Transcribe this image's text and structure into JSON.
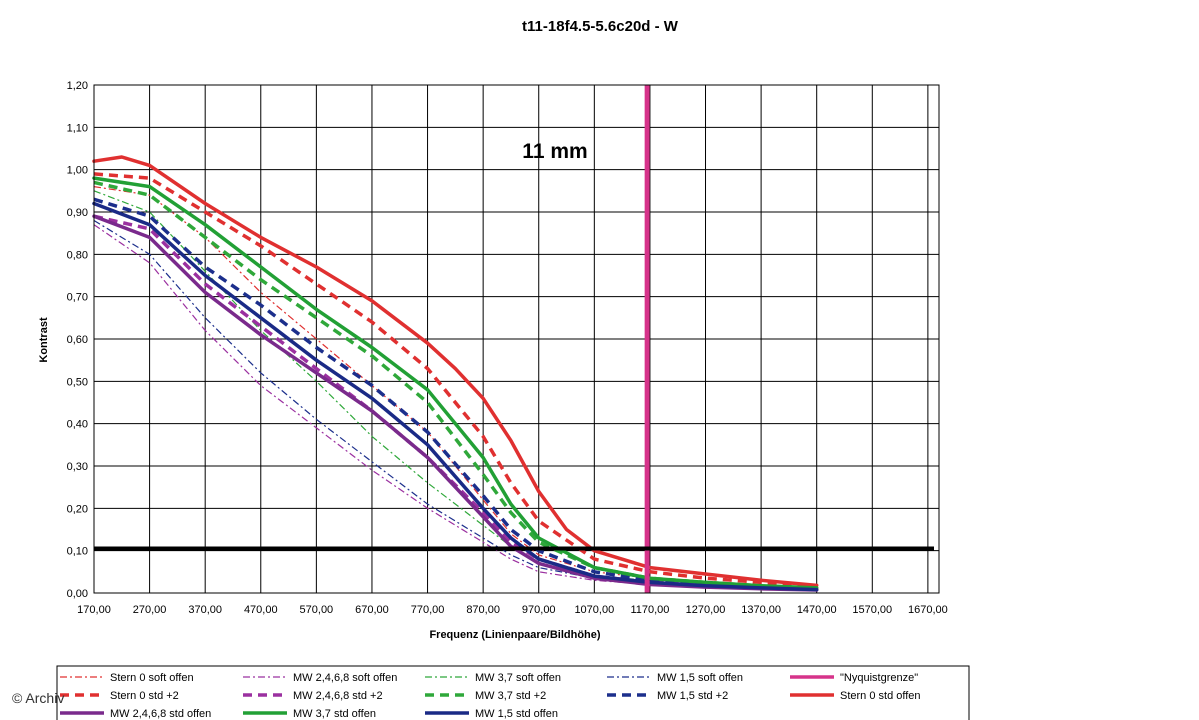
{
  "chart_data": {
    "type": "line",
    "title": "t11-18f4.5-5.6c20d - W",
    "xlabel": "Frequenz (Linienpaare/Bildhöhe)",
    "ylabel": "Kontrast",
    "annotation": "11 mm",
    "xlim": [
      170,
      1690
    ],
    "ylim": [
      0,
      1.2
    ],
    "x_ticks": [
      "170,00",
      "270,00",
      "370,00",
      "470,00",
      "570,00",
      "670,00",
      "770,00",
      "870,00",
      "970,00",
      "1070,00",
      "1170,00",
      "1270,00",
      "1370,00",
      "1470,00",
      "1570,00",
      "1670,00"
    ],
    "y_ticks": [
      "0,00",
      "0,10",
      "0,20",
      "0,30",
      "0,40",
      "0,50",
      "0,60",
      "0,70",
      "0,80",
      "0,90",
      "1,00",
      "1,10",
      "1,20"
    ],
    "grid": true,
    "reference_lines": [
      {
        "axis": "x",
        "value": 1165,
        "color": "#d6338a",
        "series_ref": "\"Nyquistgrenze\""
      },
      {
        "axis": "y",
        "value": 0.105,
        "color": "#000000"
      }
    ],
    "series": [
      {
        "name": "Stern 0 soft offen",
        "color": "#e03030",
        "style": "dashdot",
        "x": [
          170,
          270,
          370,
          470,
          570,
          670,
          770,
          870,
          920,
          970,
          1070,
          1170,
          1270,
          1370,
          1470
        ],
        "y": [
          0.96,
          0.94,
          0.84,
          0.71,
          0.6,
          0.49,
          0.38,
          0.22,
          0.14,
          0.09,
          0.05,
          0.035,
          0.025,
          0.018,
          0.012
        ]
      },
      {
        "name": "MW 2,4,6,8 soft offen",
        "color": "#9b30a0",
        "style": "dashdot",
        "x": [
          170,
          270,
          370,
          470,
          570,
          670,
          770,
          870,
          920,
          970,
          1070,
          1170,
          1270,
          1370,
          1470
        ],
        "y": [
          0.87,
          0.78,
          0.62,
          0.49,
          0.39,
          0.29,
          0.2,
          0.12,
          0.08,
          0.05,
          0.03,
          0.02,
          0.015,
          0.01,
          0.008
        ]
      },
      {
        "name": "MW 3,7 soft offen",
        "color": "#2fa83a",
        "style": "dashdot",
        "x": [
          170,
          270,
          370,
          470,
          570,
          670,
          770,
          870,
          920,
          970,
          1070,
          1170,
          1270,
          1370,
          1470
        ],
        "y": [
          0.95,
          0.9,
          0.76,
          0.62,
          0.5,
          0.37,
          0.26,
          0.16,
          0.11,
          0.07,
          0.04,
          0.03,
          0.02,
          0.015,
          0.01
        ]
      },
      {
        "name": "MW 1,5 soft offen",
        "color": "#1c2f8c",
        "style": "dashdot",
        "x": [
          170,
          270,
          370,
          470,
          570,
          670,
          770,
          870,
          920,
          970,
          1070,
          1170,
          1270,
          1370,
          1470
        ],
        "y": [
          0.88,
          0.8,
          0.65,
          0.52,
          0.41,
          0.31,
          0.21,
          0.13,
          0.09,
          0.06,
          0.035,
          0.025,
          0.018,
          0.012,
          0.009
        ]
      },
      {
        "name": "\"Nyquistgrenze\"",
        "color": "#d6338a",
        "style": "solid",
        "x": [
          1165,
          1165
        ],
        "y": [
          0,
          1.2
        ]
      },
      {
        "name": "Stern 0 std +2",
        "color": "#e03030",
        "style": "dashed",
        "x": [
          170,
          270,
          370,
          470,
          570,
          670,
          770,
          870,
          920,
          970,
          1070,
          1170,
          1270,
          1370,
          1470
        ],
        "y": [
          0.99,
          0.98,
          0.9,
          0.82,
          0.73,
          0.64,
          0.53,
          0.37,
          0.26,
          0.17,
          0.08,
          0.05,
          0.035,
          0.025,
          0.016
        ]
      },
      {
        "name": "MW 2,4,6,8 std +2",
        "color": "#9b30a0",
        "style": "dashed",
        "x": [
          170,
          270,
          370,
          470,
          570,
          670,
          770,
          870,
          920,
          970,
          1070,
          1170,
          1270,
          1370,
          1470
        ],
        "y": [
          0.89,
          0.86,
          0.73,
          0.63,
          0.53,
          0.43,
          0.32,
          0.19,
          0.12,
          0.08,
          0.04,
          0.025,
          0.018,
          0.012,
          0.008
        ]
      },
      {
        "name": "MW 3,7 std +2",
        "color": "#2fa83a",
        "style": "dashed",
        "x": [
          170,
          270,
          370,
          470,
          570,
          670,
          770,
          870,
          920,
          970,
          1070,
          1170,
          1270,
          1370,
          1470
        ],
        "y": [
          0.97,
          0.94,
          0.84,
          0.74,
          0.65,
          0.56,
          0.45,
          0.28,
          0.19,
          0.12,
          0.06,
          0.035,
          0.025,
          0.017,
          0.012
        ]
      },
      {
        "name": "MW 1,5 std +2",
        "color": "#1c2f8c",
        "style": "dashed",
        "x": [
          170,
          270,
          370,
          470,
          570,
          670,
          770,
          870,
          920,
          970,
          1070,
          1170,
          1270,
          1370,
          1470
        ],
        "y": [
          0.93,
          0.89,
          0.77,
          0.68,
          0.58,
          0.49,
          0.38,
          0.23,
          0.15,
          0.1,
          0.05,
          0.03,
          0.02,
          0.014,
          0.01
        ]
      },
      {
        "name": "Stern 0 std offen",
        "color": "#e03030",
        "style": "solid",
        "x": [
          170,
          220,
          270,
          370,
          470,
          570,
          670,
          770,
          820,
          870,
          920,
          970,
          1020,
          1070,
          1170,
          1270,
          1370,
          1470
        ],
        "y": [
          1.02,
          1.03,
          1.01,
          0.92,
          0.84,
          0.77,
          0.69,
          0.59,
          0.53,
          0.46,
          0.36,
          0.24,
          0.15,
          0.1,
          0.06,
          0.045,
          0.03,
          0.018
        ]
      },
      {
        "name": "MW 2,4,6,8 std offen",
        "color": "#7a2a8c",
        "style": "solid",
        "x": [
          170,
          270,
          370,
          470,
          570,
          670,
          770,
          870,
          920,
          970,
          1070,
          1170,
          1270,
          1370,
          1470
        ],
        "y": [
          0.89,
          0.84,
          0.71,
          0.61,
          0.52,
          0.43,
          0.32,
          0.18,
          0.11,
          0.07,
          0.035,
          0.02,
          0.014,
          0.01,
          0.007
        ]
      },
      {
        "name": "MW 3,7 std offen",
        "color": "#22a035",
        "style": "solid",
        "x": [
          170,
          270,
          370,
          470,
          570,
          670,
          770,
          870,
          920,
          970,
          1070,
          1170,
          1270,
          1370,
          1470
        ],
        "y": [
          0.98,
          0.96,
          0.87,
          0.77,
          0.67,
          0.58,
          0.48,
          0.32,
          0.21,
          0.13,
          0.06,
          0.035,
          0.025,
          0.017,
          0.012
        ]
      },
      {
        "name": "MW 1,5 std offen",
        "color": "#1a2a86",
        "style": "solid",
        "x": [
          170,
          270,
          370,
          470,
          570,
          670,
          770,
          870,
          920,
          970,
          1070,
          1170,
          1270,
          1370,
          1470
        ],
        "y": [
          0.92,
          0.87,
          0.75,
          0.65,
          0.55,
          0.46,
          0.35,
          0.2,
          0.13,
          0.08,
          0.04,
          0.025,
          0.017,
          0.012,
          0.008
        ]
      }
    ],
    "legend_position": "bottom"
  },
  "credit": "© Archiv"
}
